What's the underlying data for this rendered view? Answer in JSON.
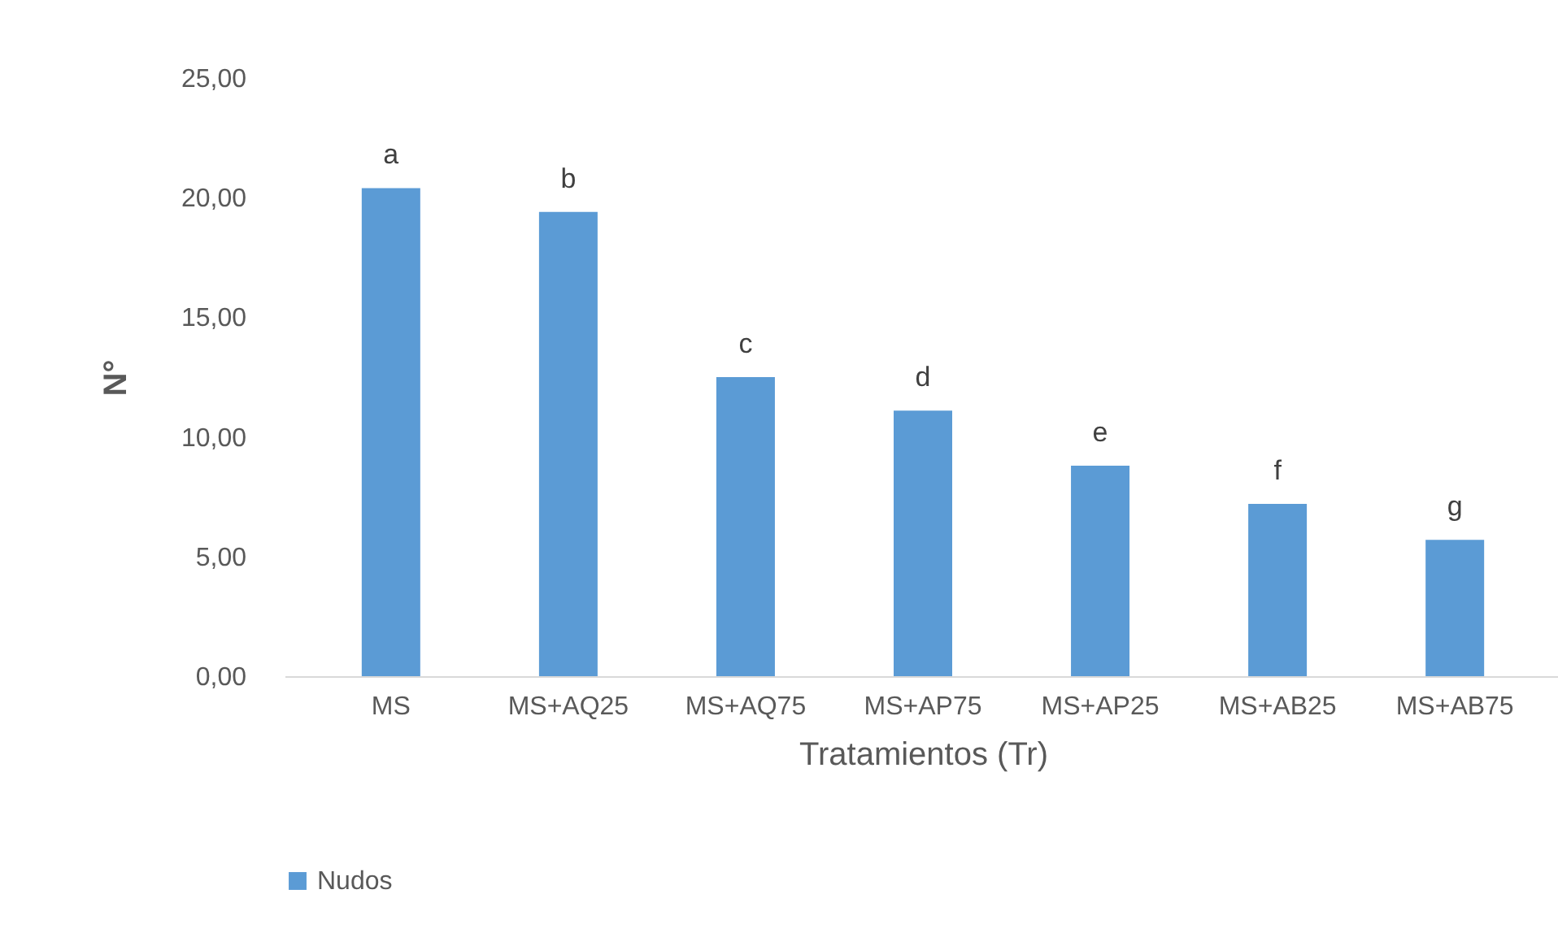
{
  "chart_data": {
    "type": "bar",
    "xlabel": "Tratamientos (Tr)",
    "ylabel": "N°",
    "categories": [
      "MS",
      "MS+AQ25",
      "MS+AQ75",
      "MS+AP75",
      "MS+AP25",
      "MS+AB25",
      "MS+AB75"
    ],
    "series": [
      {
        "name": "Nudos",
        "color": "#5b9bd5",
        "values": [
          20.4,
          19.4,
          12.5,
          11.1,
          8.8,
          7.2,
          5.7
        ]
      }
    ],
    "ylim": [
      0,
      25
    ],
    "yticks": [
      {
        "value": 0,
        "label": "0,00"
      },
      {
        "value": 5,
        "label": "5,00"
      },
      {
        "value": 10,
        "label": "10,00"
      },
      {
        "value": 15,
        "label": "15,00"
      },
      {
        "value": 20,
        "label": "20,00"
      },
      {
        "value": 25,
        "label": "25,00"
      }
    ],
    "grid": false,
    "legend": "bottom",
    "annotations": [
      {
        "text": "a",
        "x": "MS",
        "y": 20.4
      },
      {
        "text": "b",
        "x": "MS+AQ25",
        "y": 19.4
      },
      {
        "text": "c",
        "x": "MS+AQ75",
        "y": 12.5
      },
      {
        "text": "d",
        "x": "MS+AP75",
        "y": 11.1
      },
      {
        "text": "e",
        "x": "MS+AP25",
        "y": 8.8
      },
      {
        "text": "f",
        "x": "MS+AB25",
        "y": 7.2
      },
      {
        "text": "g",
        "x": "MS+AB75",
        "y": 5.7
      }
    ]
  }
}
